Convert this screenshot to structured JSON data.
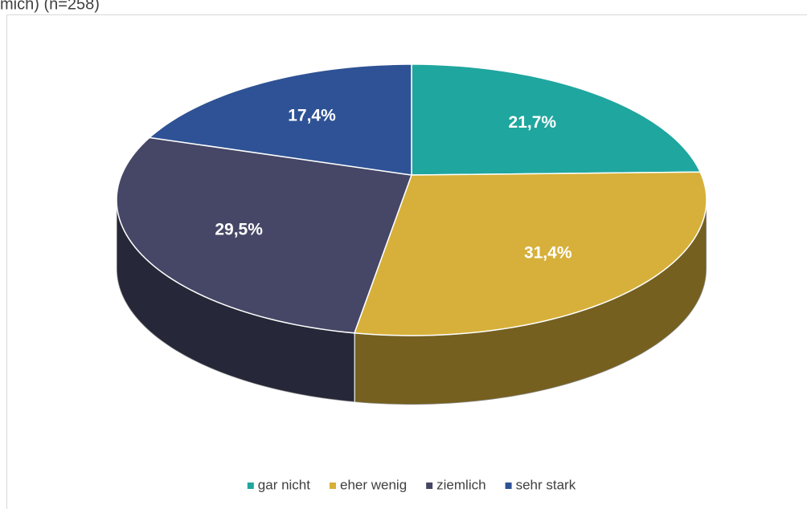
{
  "chart_data": {
    "type": "pie",
    "title": "mich) (n=258)",
    "categories": [
      "gar nicht",
      "eher wenig",
      "ziemlich",
      "sehr stark"
    ],
    "values": [
      21.7,
      31.4,
      29.5,
      17.4
    ],
    "value_labels": [
      "21,7%",
      "31,4%",
      "29,5%",
      "17,4%"
    ],
    "colors": [
      "#1fa69f",
      "#d6b03a",
      "#464766",
      "#2e5295"
    ],
    "legend": "bottom"
  }
}
